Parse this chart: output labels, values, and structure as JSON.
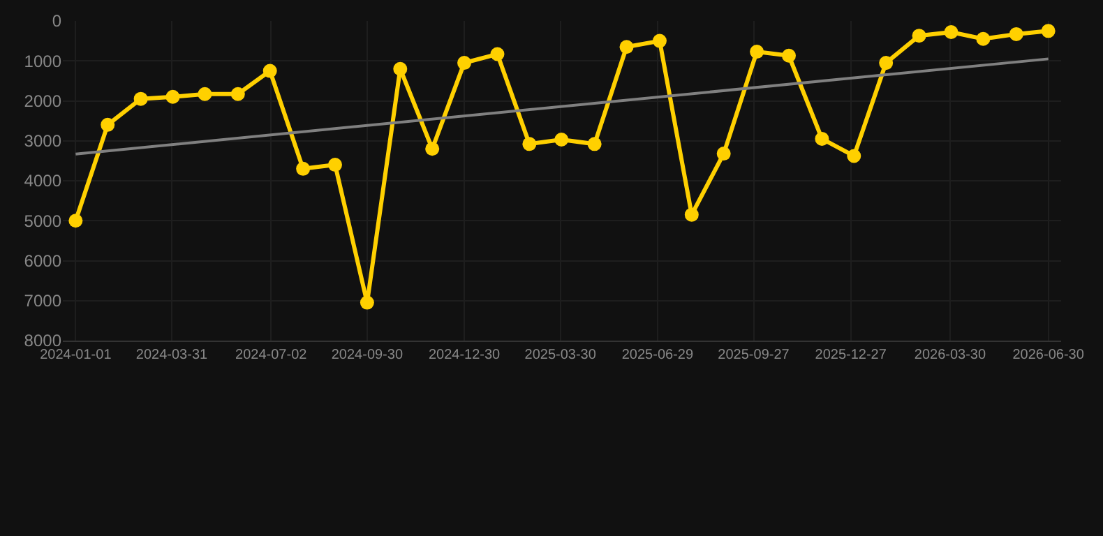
{
  "chart_data": {
    "type": "line",
    "x": [
      "2024-01-01",
      "2024-01-31",
      "2024-03-02",
      "2024-04-01",
      "2024-05-01",
      "2024-06-01",
      "2024-07-01",
      "2024-08-01",
      "2024-08-31",
      "2024-09-30",
      "2024-10-31",
      "2024-11-30",
      "2024-12-30",
      "2025-01-30",
      "2025-03-01",
      "2025-03-31",
      "2025-05-01",
      "2025-05-31",
      "2025-07-01",
      "2025-07-31",
      "2025-08-30",
      "2025-09-30",
      "2025-10-30",
      "2025-11-30",
      "2025-12-30",
      "2026-01-29",
      "2026-03-01",
      "2026-03-31",
      "2026-04-30",
      "2026-05-31",
      "2026-06-30"
    ],
    "series": [
      {
        "color": "#ffd000",
        "marker": "circle",
        "values": [
          5000,
          2600,
          1950,
          1900,
          1830,
          1830,
          1250,
          3700,
          3600,
          7050,
          1200,
          3200,
          1050,
          830,
          3080,
          2970,
          3080,
          650,
          500,
          4850,
          3320,
          770,
          870,
          2950,
          3380,
          1050,
          370,
          280,
          450,
          330,
          250
        ]
      },
      {
        "color": "#808080",
        "marker": "none",
        "x": [
          "2024-01-01",
          "2026-06-30"
        ],
        "values": [
          3330,
          950
        ]
      }
    ],
    "xlim": [
      "2023-12-20",
      "2026-07-12"
    ],
    "xticks": [
      "2024-01-01",
      "2024-03-31",
      "2024-07-02",
      "2024-09-30",
      "2024-12-30",
      "2025-03-30",
      "2025-06-29",
      "2025-09-27",
      "2025-12-27",
      "2026-03-30",
      "2026-06-30"
    ],
    "ylim": [
      8000,
      0
    ],
    "yticks": [
      0,
      1000,
      2000,
      3000,
      4000,
      5000,
      6000,
      7000,
      8000
    ],
    "grid": true
  }
}
